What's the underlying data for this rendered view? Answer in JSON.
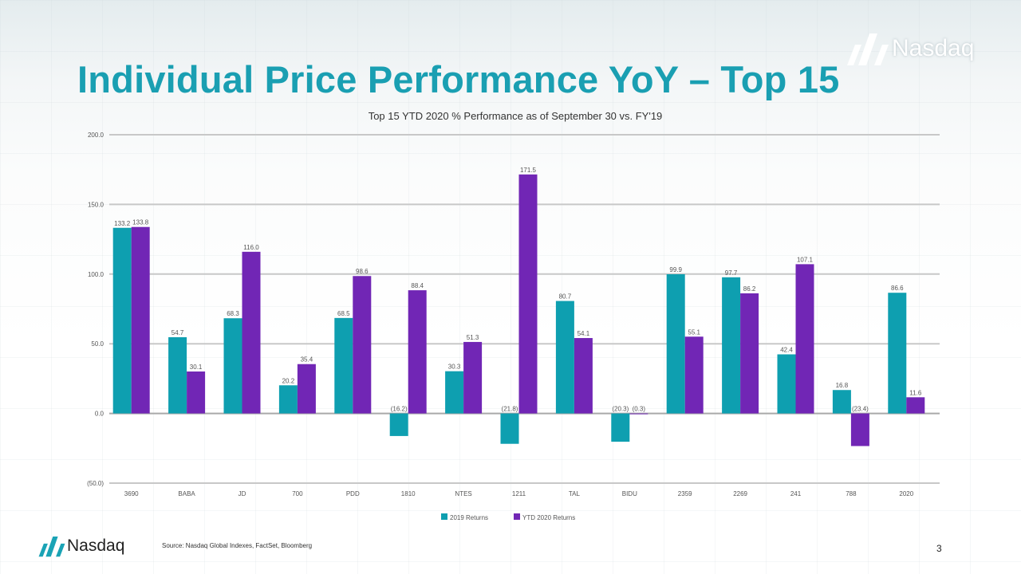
{
  "slide": {
    "title": "Individual Price Performance YoY – Top 15",
    "brand": "Nasdaq",
    "source": "Source: Nasdaq Global Indexes, FactSet, Bloomberg",
    "page_number": "3"
  },
  "colors": {
    "title": "#1a9fb2",
    "series_2019": "#0e9fb0",
    "series_2020": "#7126b5"
  },
  "chart_data": {
    "type": "bar",
    "title": "Top 15 YTD 2020 % Performance as of September 30 vs. FY'19",
    "categories": [
      "3690",
      "BABA",
      "JD",
      "700",
      "PDD",
      "1810",
      "NTES",
      "1211",
      "TAL",
      "BIDU",
      "2359",
      "2269",
      "241",
      "788",
      "2020"
    ],
    "series": [
      {
        "name": "2019 Returns",
        "values": [
          133.2,
          54.7,
          68.3,
          20.2,
          68.5,
          -16.2,
          30.3,
          -21.8,
          80.7,
          -20.3,
          99.9,
          97.7,
          42.4,
          16.8,
          86.6
        ],
        "labels": [
          "133.2",
          "54.7",
          "68.3",
          "20.2",
          "68.5",
          "(16.2)",
          "30.3",
          "(21.8)",
          "80.7",
          "(20.3)",
          "99.9",
          "97.7",
          "42.4",
          "16.8",
          "86.6"
        ]
      },
      {
        "name": "YTD 2020 Returns",
        "values": [
          133.8,
          30.1,
          116.0,
          35.4,
          98.6,
          88.4,
          51.3,
          171.5,
          54.1,
          -0.3,
          55.1,
          86.2,
          107.1,
          -23.4,
          11.6
        ],
        "labels": [
          "133.8",
          "30.1",
          "116.0",
          "35.4",
          "98.6",
          "88.4",
          "51.3",
          "171.5",
          "54.1",
          "(0.3)",
          "55.1",
          "86.2",
          "107.1",
          "(23.4)",
          "11.6"
        ]
      }
    ],
    "yticks": [
      "200.0",
      "150.0",
      "100.0",
      "50.0",
      "0.0",
      "(50.0)"
    ],
    "ytick_values": [
      200,
      150,
      100,
      50,
      0,
      -50
    ],
    "ylim": [
      -50,
      200
    ],
    "grid": true,
    "legend": "bottom-center",
    "xlabel": "",
    "ylabel": ""
  }
}
